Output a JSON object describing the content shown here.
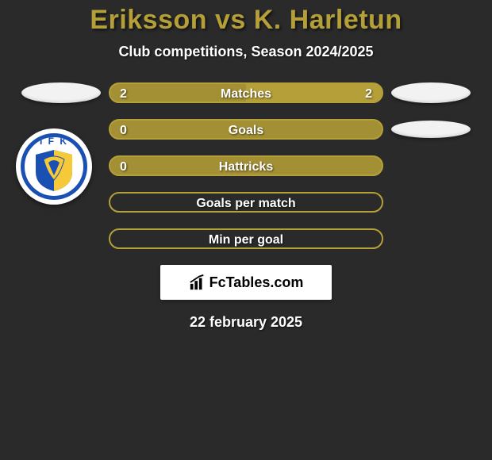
{
  "title_color": "#b59f39",
  "background_color": "#2a2a2a",
  "title": "Eriksson vs K. Harletun",
  "subtitle": "Club competitions, Season 2024/2025",
  "date": "22 february 2025",
  "watermark": {
    "text": "FcTables.com"
  },
  "bar_style": {
    "border_color": "#b59f39",
    "fill_left_color": "#a49034",
    "fill_right_color": "#b59f39",
    "track_base_color": "#b59f39"
  },
  "left_player": {
    "badge_border_color": "#1a4fb3",
    "badge_letters": "I F K"
  },
  "rows": [
    {
      "label": "Matches",
      "left_val": "2",
      "right_val": "2",
      "left_pct": 50,
      "right_pct": 50,
      "show_left_ellipse": true,
      "show_right_ellipse": true,
      "show_left_val": true,
      "show_right_val": true
    },
    {
      "label": "Goals",
      "left_val": "0",
      "right_val": "",
      "left_pct": 100,
      "right_pct": 0,
      "show_left_ellipse": false,
      "show_right_ellipse": true,
      "show_left_val": true,
      "show_right_val": false
    },
    {
      "label": "Hattricks",
      "left_val": "0",
      "right_val": "",
      "left_pct": 100,
      "right_pct": 0,
      "show_left_ellipse": false,
      "show_right_ellipse": false,
      "show_left_val": true,
      "show_right_val": false
    },
    {
      "label": "Goals per match",
      "left_val": "",
      "right_val": "",
      "left_pct": 0,
      "right_pct": 0,
      "show_left_ellipse": false,
      "show_right_ellipse": false,
      "show_left_val": false,
      "show_right_val": false
    },
    {
      "label": "Min per goal",
      "left_val": "",
      "right_val": "",
      "left_pct": 0,
      "right_pct": 0,
      "show_left_ellipse": false,
      "show_right_ellipse": false,
      "show_left_val": false,
      "show_right_val": false
    }
  ]
}
